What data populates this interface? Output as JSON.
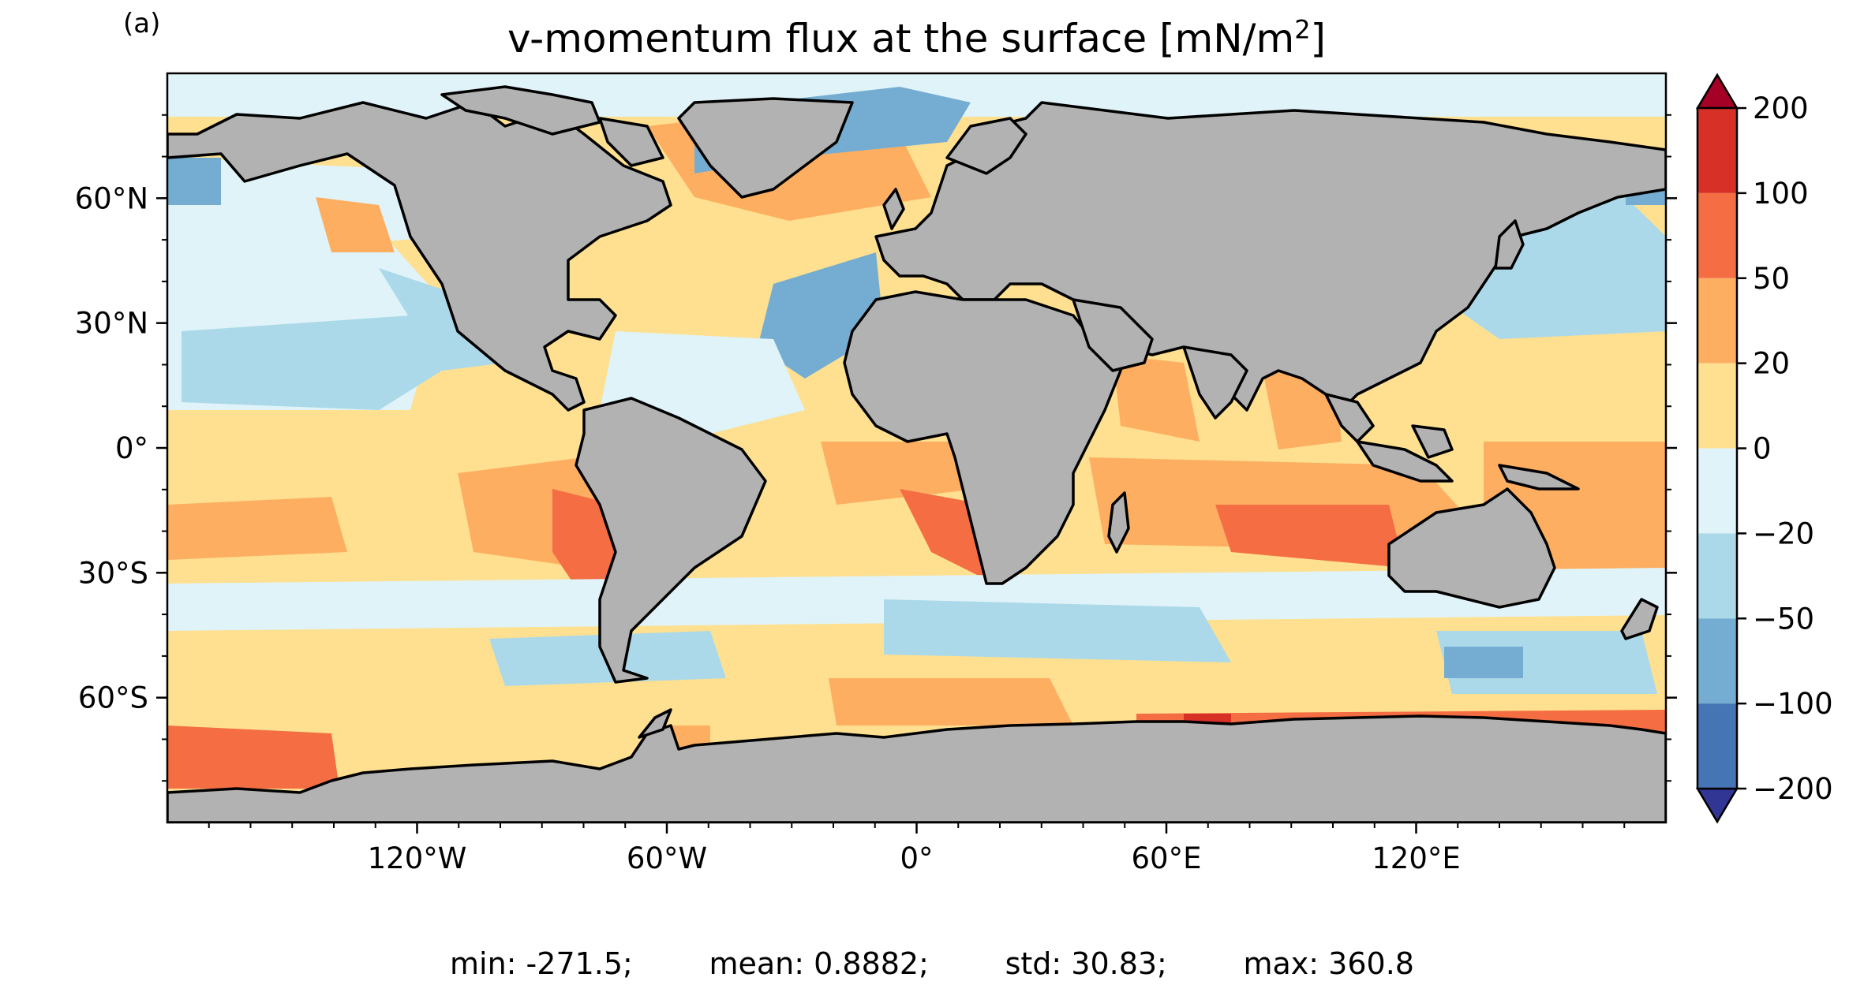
{
  "panel_label": "(a)",
  "title": {
    "text": "v-momentum flux at the surface [mN/m",
    "superscript": "2",
    "suffix": "]"
  },
  "map": {
    "projection": "PlateCarree",
    "lon_range": [
      -180,
      180
    ],
    "lat_range": [
      -90,
      90
    ],
    "land_color": "#b2b2b2",
    "coastline_color": "#000000",
    "lon_ticks": [
      {
        "value": -120,
        "label": "120°W"
      },
      {
        "value": -60,
        "label": "60°W"
      },
      {
        "value": 0,
        "label": "0°"
      },
      {
        "value": 60,
        "label": "60°E"
      },
      {
        "value": 120,
        "label": "120°E"
      }
    ],
    "lat_ticks": [
      {
        "value": 60,
        "label": "60°N"
      },
      {
        "value": 30,
        "label": "30°N"
      },
      {
        "value": 0,
        "label": "0°"
      },
      {
        "value": -30,
        "label": "30°S"
      },
      {
        "value": -60,
        "label": "60°S"
      }
    ]
  },
  "colorbar": {
    "extend": "both",
    "levels": [
      -200,
      -100,
      -50,
      -20,
      0,
      20,
      50,
      100,
      200
    ],
    "labels": [
      "200",
      "100",
      "50",
      "20",
      "0",
      "−20",
      "−50",
      "−100",
      "−200"
    ],
    "colors": [
      "#313695",
      "#4575b4",
      "#74add1",
      "#abd9e9",
      "#e0f3f8",
      "#fee090",
      "#fdae61",
      "#f46d43",
      "#d73027",
      "#a50026"
    ]
  },
  "stats": {
    "min": "min: -271.5;",
    "mean": "mean: 0.8882;",
    "std": "std: 30.83;",
    "max": "max: 360.8"
  }
}
